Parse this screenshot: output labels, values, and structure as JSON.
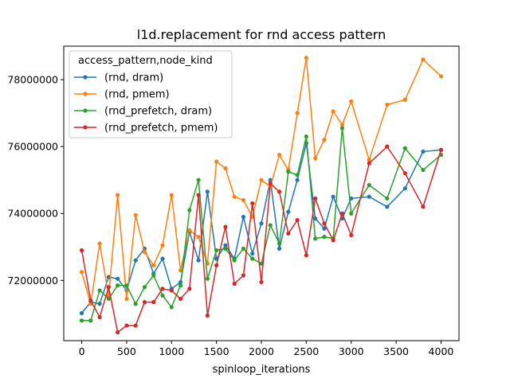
{
  "chart_data": {
    "type": "line",
    "title": "l1d.replacement for rnd access pattern",
    "xlabel": "spinloop_iterations",
    "ylabel": "",
    "xlim": [
      -200,
      4200
    ],
    "ylim": [
      70200000,
      79000000
    ],
    "xticks": [
      0,
      500,
      1000,
      1500,
      2000,
      2500,
      3000,
      3500,
      4000
    ],
    "xtick_labels": [
      "0",
      "500",
      "1000",
      "1500",
      "2000",
      "2500",
      "3000",
      "3500",
      "4000"
    ],
    "yticks": [
      72000000,
      74000000,
      76000000,
      78000000
    ],
    "ytick_labels": [
      "72000000",
      "74000000",
      "76000000",
      "78000000"
    ],
    "grid": false,
    "legend": {
      "title": "access_pattern,node_kind",
      "placement": "top-left"
    },
    "x": [
      0,
      100,
      200,
      300,
      400,
      500,
      600,
      700,
      800,
      900,
      1000,
      1100,
      1200,
      1300,
      1400,
      1500,
      1600,
      1700,
      1800,
      1900,
      2000,
      2100,
      2200,
      2300,
      2400,
      2500,
      2600,
      2700,
      2800,
      2900,
      3000,
      3200,
      3400,
      3600,
      3800,
      4000
    ],
    "series": [
      {
        "name": "(rnd, dram)",
        "color": "#1f77b4",
        "values": [
          71020000,
          71350000,
          71300000,
          72100000,
          72050000,
          71700000,
          72600000,
          72950000,
          72200000,
          72650000,
          71750000,
          71950000,
          73450000,
          72600000,
          74650000,
          72650000,
          73050000,
          72650000,
          73900000,
          72800000,
          73700000,
          75000000,
          72950000,
          74050000,
          75000000,
          76100000,
          73850000,
          73550000,
          74500000,
          73850000,
          74450000,
          74500000,
          74200000,
          74750000,
          75850000,
          75900000
        ]
      },
      {
        "name": "(rnd, pmem)",
        "color": "#ff7f0e",
        "values": [
          72250000,
          71300000,
          73100000,
          71550000,
          74550000,
          71450000,
          73950000,
          72850000,
          72450000,
          73050000,
          74550000,
          72300000,
          73500000,
          73300000,
          72500000,
          75550000,
          75350000,
          74500000,
          74400000,
          73900000,
          75000000,
          74800000,
          75750000,
          75300000,
          77000000,
          78650000,
          75650000,
          76200000,
          77050000,
          76650000,
          77350000,
          75600000,
          77250000,
          77400000,
          78600000,
          78100000
        ]
      },
      {
        "name": "(rnd_prefetch, dram)",
        "color": "#2ca02c",
        "values": [
          70800000,
          70800000,
          71700000,
          71450000,
          71850000,
          71850000,
          71300000,
          71800000,
          72150000,
          71550000,
          71200000,
          71850000,
          74100000,
          75000000,
          72050000,
          72900000,
          72950000,
          72600000,
          72950000,
          72650000,
          72500000,
          73650000,
          73100000,
          75250000,
          75150000,
          76300000,
          73250000,
          73300000,
          73250000,
          76550000,
          74000000,
          74850000,
          74450000,
          75950000,
          75300000,
          75750000
        ]
      },
      {
        "name": "(rnd_prefetch, pmem)",
        "color": "#d62728",
        "values": [
          72900000,
          71400000,
          70900000,
          71800000,
          70450000,
          70650000,
          70650000,
          71350000,
          71350000,
          71750000,
          71700000,
          71450000,
          71750000,
          74550000,
          70950000,
          72450000,
          73600000,
          71900000,
          72150000,
          74300000,
          71950000,
          74900000,
          74650000,
          73400000,
          73800000,
          72750000,
          74450000,
          73700000,
          73200000,
          74000000,
          73350000,
          75500000,
          76000000,
          75200000,
          74200000,
          75900000
        ]
      }
    ]
  }
}
